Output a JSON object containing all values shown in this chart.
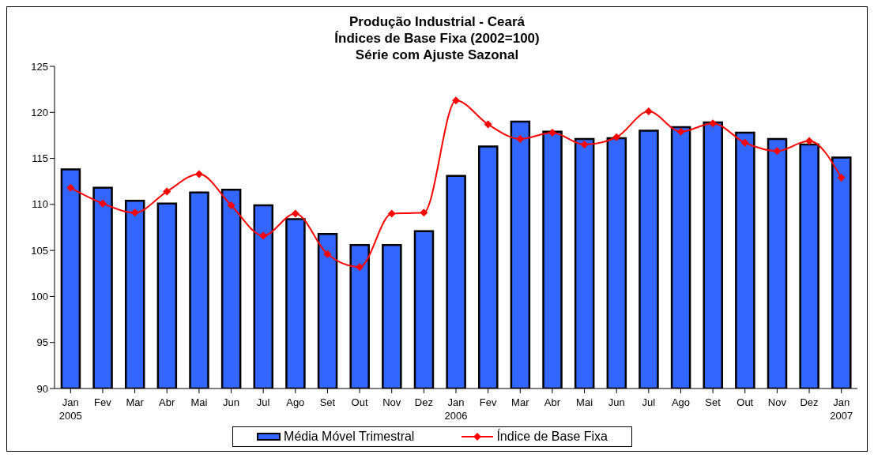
{
  "chart_data": {
    "type": "bar",
    "title": "Produção Industrial - Ceará\nÍndices de Base Fixa (2002=100)\nSérie com Ajuste Sazonal",
    "categories": [
      "Jan\n2005",
      "Fev",
      "Mar",
      "Abr",
      "Mai",
      "Jun",
      "Jul",
      "Ago",
      "Set",
      "Out",
      "Nov",
      "Dez",
      "Jan\n2006",
      "Fev",
      "Mar",
      "Abr",
      "Mai",
      "Jun",
      "Jul",
      "Ago",
      "Set",
      "Out",
      "Nov",
      "Dez",
      "Jan\n2007"
    ],
    "series": [
      {
        "name": "Média Móvel Trimestral",
        "color": "#3366ff",
        "values": [
          113.8,
          111.8,
          110.4,
          110.1,
          111.3,
          111.6,
          109.9,
          108.4,
          106.8,
          105.6,
          105.6,
          107.1,
          113.1,
          116.3,
          119.0,
          117.9,
          117.1,
          117.2,
          118.0,
          118.4,
          118.9,
          117.8,
          117.1,
          116.5,
          115.1
        ]
      },
      {
        "name": "Índice de Base Fixa",
        "type": "line",
        "color": "#ff0000",
        "marker": "diamond",
        "values": [
          111.8,
          110.1,
          109.1,
          111.4,
          113.3,
          109.9,
          106.6,
          109.0,
          104.6,
          103.2,
          109.0,
          109.1,
          121.3,
          118.7,
          117.1,
          117.8,
          116.5,
          117.3,
          120.1,
          117.9,
          118.8,
          116.7,
          115.8,
          116.9,
          112.9
        ]
      }
    ],
    "ylim": [
      90,
      125
    ],
    "yticks": [
      90,
      95,
      100,
      105,
      110,
      115,
      120,
      125
    ],
    "grid": false,
    "legend": "bottom"
  }
}
